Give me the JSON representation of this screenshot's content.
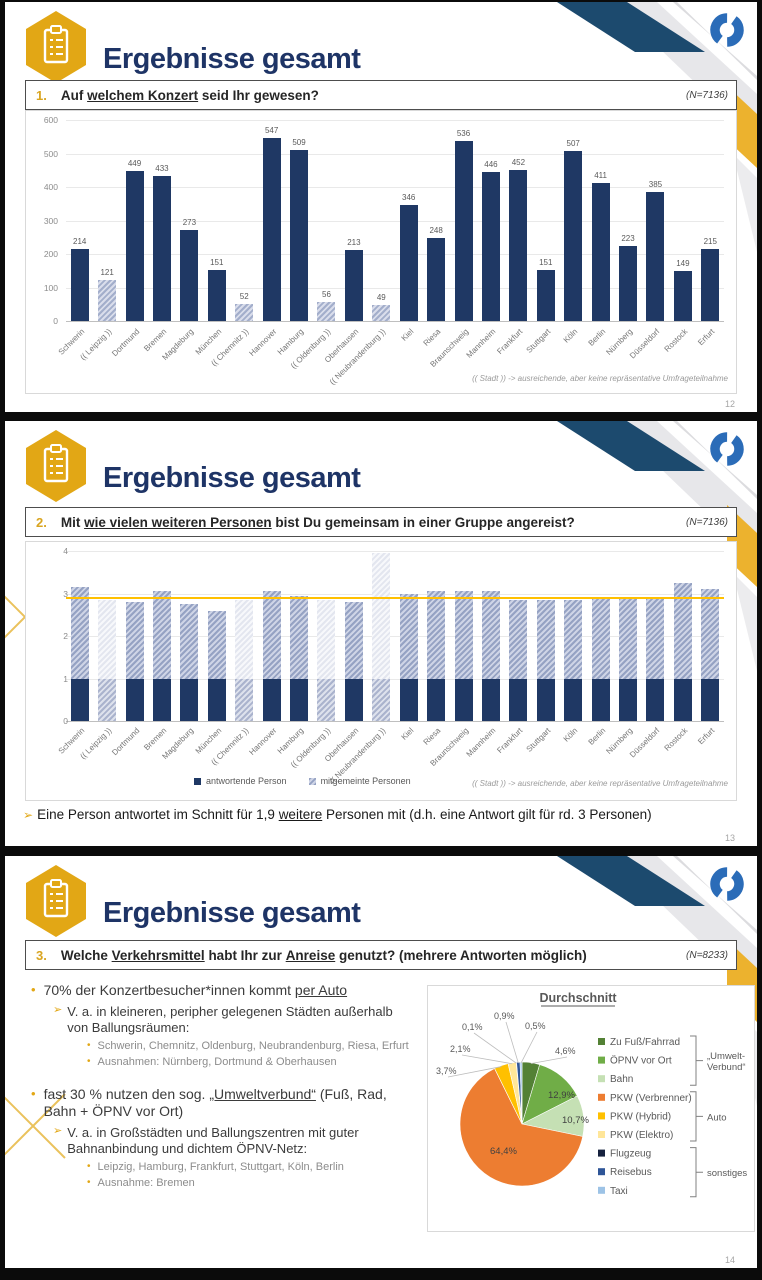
{
  "colors": {
    "navy": "#1F3864",
    "gold": "#E2A715",
    "deco_navy": "#1C4A6E",
    "deco_yellow": "#ECB22E",
    "deco_gray": "#e7e7ea",
    "avg_line": "#FFC000",
    "light_bar": "#a3aecb"
  },
  "slides": [
    {
      "header": {
        "title": "Ergebnisse gesamt"
      },
      "question": {
        "number": "1.",
        "segments": [
          {
            "t": "Auf "
          },
          {
            "t": "welchem Konzert",
            "u": true
          },
          {
            "t": " seid Ihr gewesen?"
          }
        ],
        "n": "(N=7136)"
      },
      "footnote": "(( Stadt )) -> ausreichende, aber keine repräsentative Umfrageteilnahme",
      "page_number": "12",
      "chart_data": {
        "type": "bar",
        "title": "",
        "categories": [
          "Schwerin",
          "(( Leipzig ))",
          "Dortmund",
          "Bremen",
          "Magdeburg",
          "München",
          "(( Chemnitz ))",
          "Hannover",
          "Hamburg",
          "(( Oldenburg ))",
          "Oberhausen",
          "(( Neubrandenburg ))",
          "Kiel",
          "Riesa",
          "Braunschweig",
          "Mannheim",
          "Frankfurt",
          "Stuttgart",
          "Köln",
          "Berlin",
          "Nürnberg",
          "Düsseldorf",
          "Rostock",
          "Erfurt"
        ],
        "values": [
          214,
          121,
          449,
          433,
          273,
          151,
          52,
          547,
          509,
          56,
          213,
          49,
          346,
          248,
          536,
          446,
          452,
          151,
          507,
          411,
          223,
          385,
          149,
          215
        ],
        "hatched_note": "((Stadt)) categories drawn as light hatched bars",
        "ylim": [
          0,
          600
        ],
        "yticks": [
          0,
          100,
          200,
          300,
          400,
          500,
          600
        ],
        "grid": true
      }
    },
    {
      "header": {
        "title": "Ergebnisse gesamt"
      },
      "question": {
        "number": "2.",
        "segments": [
          {
            "t": "Mit "
          },
          {
            "t": "wie vielen weiteren Personen",
            "u": true
          },
          {
            "t": " bist Du gemeinsam in einer Gruppe angereist?"
          }
        ],
        "n": "(N=7136)"
      },
      "footnote": "(( Stadt )) -> ausreichende, aber keine repräsentative Umfrageteilnahme",
      "page_number": "13",
      "takeaway": {
        "arrow": "➢",
        "segments": [
          {
            "t": "Eine Person antwortet im Schnitt für 1,9 "
          },
          {
            "t": "weitere",
            "u": true
          },
          {
            "t": " Personen mit (d.h. eine Antwort gilt für rd. 3 Personen)"
          }
        ]
      },
      "chart_data": {
        "type": "bar",
        "stacked": true,
        "categories": [
          "Schwerin",
          "(( Leipzig ))",
          "Dortmund",
          "Bremen",
          "Magdeburg",
          "München",
          "(( Chemnitz ))",
          "Hannover",
          "Hamburg",
          "(( Oldenburg ))",
          "Oberhausen",
          "(( Neubrandenburg ))",
          "Kiel",
          "Riesa",
          "Braunschweig",
          "Mannheim",
          "Frankfurt",
          "Stuttgart",
          "Köln",
          "Berlin",
          "Nürnberg",
          "Düsseldorf",
          "Rostock",
          "Erfurt"
        ],
        "series": [
          {
            "name": "antwortende Person",
            "values": [
              1,
              1,
              1,
              1,
              1,
              1,
              1,
              1,
              1,
              1,
              1,
              1,
              1,
              1,
              1,
              1,
              1,
              1,
              1,
              1,
              1,
              1,
              1,
              1
            ]
          },
          {
            "name": "mitgemeinte Personen",
            "values": [
              2.15,
              1.85,
              1.8,
              2.05,
              1.75,
              1.6,
              1.85,
              2.05,
              1.95,
              1.85,
              1.8,
              2.95,
              2.0,
              2.05,
              2.05,
              2.05,
              1.85,
              1.85,
              1.85,
              1.9,
              1.9,
              1.9,
              2.25,
              2.1
            ]
          }
        ],
        "avg_line": 2.9,
        "ylim": [
          0,
          4
        ],
        "yticks": [
          0,
          1,
          2,
          3,
          4
        ],
        "legend_position": "bottom",
        "grid": true
      }
    },
    {
      "header": {
        "title": "Ergebnisse gesamt"
      },
      "question": {
        "number": "3.",
        "segments": [
          {
            "t": "Welche "
          },
          {
            "t": "Verkehrsmittel",
            "u": true
          },
          {
            "t": " habt Ihr zur "
          },
          {
            "t": "Anreise",
            "u": true
          },
          {
            "t": " genutzt? (mehrere Antworten möglich)"
          }
        ],
        "n": "(N=8233)"
      },
      "page_number": "14",
      "bullets": [
        {
          "level": 1,
          "gap": false,
          "segments": [
            {
              "t": "70% der Konzertbesucher*innen kommt "
            },
            {
              "t": "per Auto",
              "u": true
            }
          ]
        },
        {
          "level": 2,
          "gap": false,
          "segments": [
            {
              "t": "V. a. in kleineren, peripher gelegenen Städten außerhalb von Ballungsräumen:"
            }
          ]
        },
        {
          "level": 3,
          "gap": false,
          "segments": [
            {
              "t": "Schwerin, Chemnitz, Oldenburg, Neubrandenburg, Riesa, Erfurt"
            }
          ]
        },
        {
          "level": 3,
          "gap": false,
          "segments": [
            {
              "t": "Ausnahmen: Nürnberg, Dortmund & Oberhausen"
            }
          ]
        },
        {
          "level": 1,
          "gap": true,
          "segments": [
            {
              "t": "fast 30 % nutzen den sog. "
            },
            {
              "t": "„Umweltverbund“",
              "u": true
            },
            {
              "t": " (Fuß, Rad, Bahn + ÖPNV vor Ort)"
            }
          ]
        },
        {
          "level": 2,
          "gap": false,
          "segments": [
            {
              "t": "V. a. in Großstädten und Ballungszentren mit guter Bahnanbindung und dichtem ÖPNV-Netz:"
            }
          ]
        },
        {
          "level": 3,
          "gap": false,
          "segments": [
            {
              "t": "Leipzig, Hamburg, Frankfurt, Stuttgart, Köln, Berlin"
            }
          ]
        },
        {
          "level": 3,
          "gap": false,
          "segments": [
            {
              "t": "Ausnahme: Bremen"
            }
          ]
        }
      ],
      "chart_data": {
        "type": "pie",
        "title": "Durchschnitt",
        "slices": [
          {
            "label": "Zu Fuß/Fahrrad",
            "value": 4.6,
            "display": "4,6%",
            "color": "#538135"
          },
          {
            "label": "ÖPNV vor Ort",
            "value": 12.9,
            "display": "12,9%",
            "color": "#70AD47"
          },
          {
            "label": "Bahn",
            "value": 10.7,
            "display": "10,7%",
            "color": "#C5E0B4"
          },
          {
            "label": "PKW (Verbrenner)",
            "value": 64.4,
            "display": "64,4%",
            "color": "#ED7D31"
          },
          {
            "label": "PKW (Hybrid)",
            "value": 3.7,
            "display": "3,7%",
            "color": "#FFC000"
          },
          {
            "label": "PKW (Elektro)",
            "value": 2.1,
            "display": "2,1%",
            "color": "#FFE699"
          },
          {
            "label": "Flugzeug",
            "value": 0.1,
            "display": "0,1%",
            "color": "#16213E"
          },
          {
            "label": "Reisebus",
            "value": 0.9,
            "display": "0,9%",
            "color": "#2E5597"
          },
          {
            "label": "Taxi",
            "value": 0.5,
            "display": "0,5%",
            "color": "#9DC3E6"
          }
        ],
        "groups": [
          {
            "label": "„Umwelt-\nVerbund“",
            "from": 0,
            "to": 2
          },
          {
            "label": "Auto",
            "from": 3,
            "to": 5
          },
          {
            "label": "sonstiges",
            "from": 6,
            "to": 8
          }
        ],
        "legend_position": "right"
      }
    }
  ]
}
